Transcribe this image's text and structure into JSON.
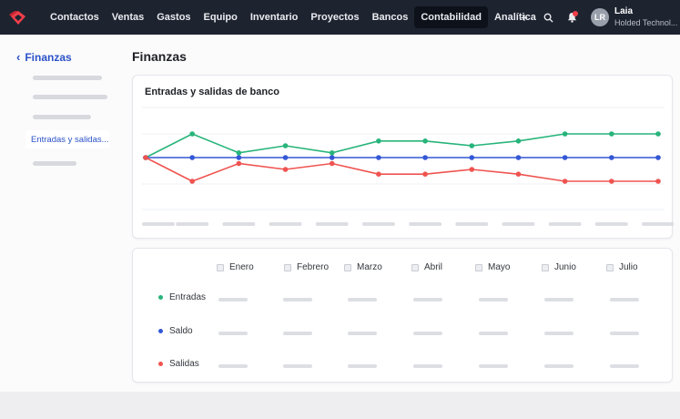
{
  "navbar": {
    "items": [
      "Contactos",
      "Ventas",
      "Gastos",
      "Equipo",
      "Inventario",
      "Proyectos",
      "Bancos",
      "Contabilidad",
      "Analítica"
    ],
    "active": "Contabilidad",
    "user_name": "Laia",
    "user_company": "Holded Technol...",
    "avatar_initials": "LR",
    "logo_icon": "holded-logo-icon",
    "accent_color": "#ef3e4a"
  },
  "sidebar": {
    "back_label": "Finanzas",
    "active_item": "Entradas y salidas..."
  },
  "page": {
    "title": "Finanzas"
  },
  "chart_card": {
    "title": "Entradas y salidas de banco"
  },
  "chart_data": {
    "type": "line",
    "series": [
      {
        "color": "#27b47a",
        "values": [
          0,
          1,
          0.2,
          0.5,
          0.2,
          0.7,
          0.7,
          0.5,
          0.7,
          1,
          1,
          1
        ]
      },
      {
        "color": "#3457d5",
        "values": [
          0,
          0,
          0,
          0,
          0,
          0,
          0,
          0,
          0,
          0,
          0,
          0
        ]
      },
      {
        "color": "#ef5350",
        "values": [
          0,
          -1,
          -0.25,
          -0.5,
          -0.25,
          -0.7,
          -0.7,
          -0.5,
          -0.7,
          -1,
          -1,
          -1
        ]
      }
    ],
    "grid": true,
    "legend": "none"
  },
  "table_card": {
    "months": [
      "Enero",
      "Febrero",
      "Marzo",
      "Abril",
      "Mayo",
      "Junio",
      "Julio"
    ],
    "rows": [
      {
        "label": "Entradas",
        "color": "#27b47a"
      },
      {
        "label": "Saldo",
        "color": "#3457d5"
      },
      {
        "label": "Salidas",
        "color": "#ef5350"
      }
    ]
  }
}
